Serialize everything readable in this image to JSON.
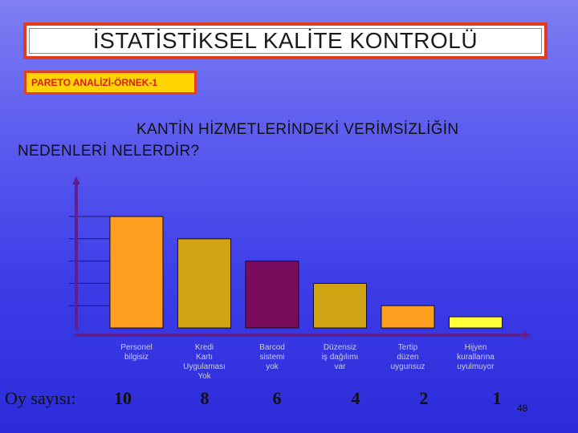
{
  "header": {
    "title": "İSTATİSTİKSEL KALİTE KONTROLÜ",
    "subtitle": "PARETO ANALİZİ-ÖRNEK-1"
  },
  "question": {
    "line1": "KANTİN HİZMETLERİNDEKİ VERİMSİZLİĞİN",
    "line2": "NEDENLERİ NELERDİR?"
  },
  "page_number": "48",
  "colors": {
    "background": "#4a4ae8",
    "title_border": "#e23a1c",
    "subtitle_fill": "#ffd400",
    "axis": "#5f1f8f"
  },
  "chart_data": {
    "type": "bar",
    "categories": [
      [
        "Personel",
        "bilgisiz"
      ],
      [
        "Kredi",
        "Kartı",
        "Uygulaması",
        "Yok"
      ],
      [
        "Barcod",
        "sistemi",
        "yok"
      ],
      [
        "Düzensiz",
        "iş dağılımı",
        "var"
      ],
      [
        "Tertip",
        "düzen",
        "uygunsuz"
      ],
      [
        "Hijyen",
        "kurallarına",
        "uyulmuyor"
      ]
    ],
    "values": [
      10,
      8,
      6,
      4,
      2,
      1
    ],
    "value_labels": [
      "10",
      "8",
      "6",
      "4",
      "2",
      "1"
    ],
    "value_row_label": "Oy sayısı:",
    "bar_colors": [
      "#ff9e1f",
      "#d2a313",
      "#7a0c5e",
      "#d2a313",
      "#ff9e1f",
      "#ffff3a"
    ],
    "ylim": [
      0,
      10
    ],
    "grid": true,
    "xlabel": "",
    "ylabel": ""
  }
}
